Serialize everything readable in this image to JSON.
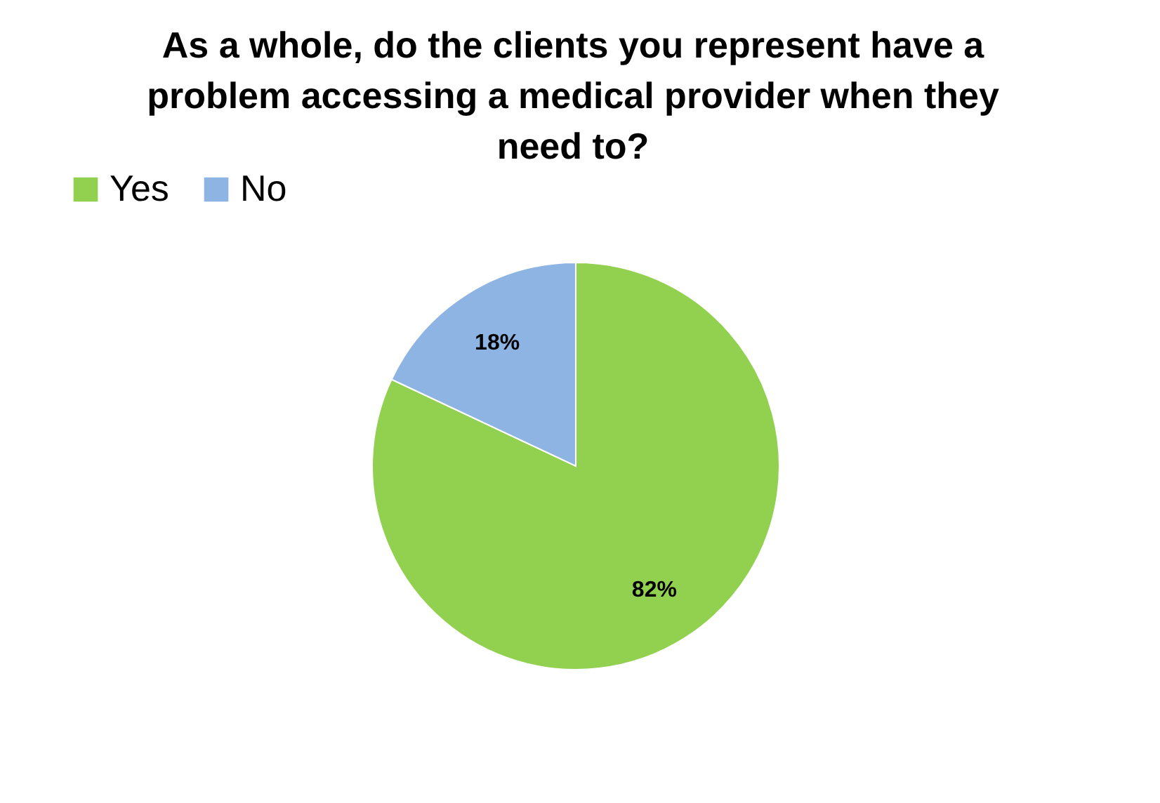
{
  "chart_data": {
    "type": "pie",
    "title": "As a whole, do the clients you represent have a problem accessing a medical provider when they need to?",
    "categories": [
      "Yes",
      "No"
    ],
    "values": [
      82,
      18
    ],
    "colors": [
      "#92d050",
      "#8eb4e3"
    ],
    "value_labels": [
      "82%",
      "18%"
    ],
    "legend": "top left"
  }
}
